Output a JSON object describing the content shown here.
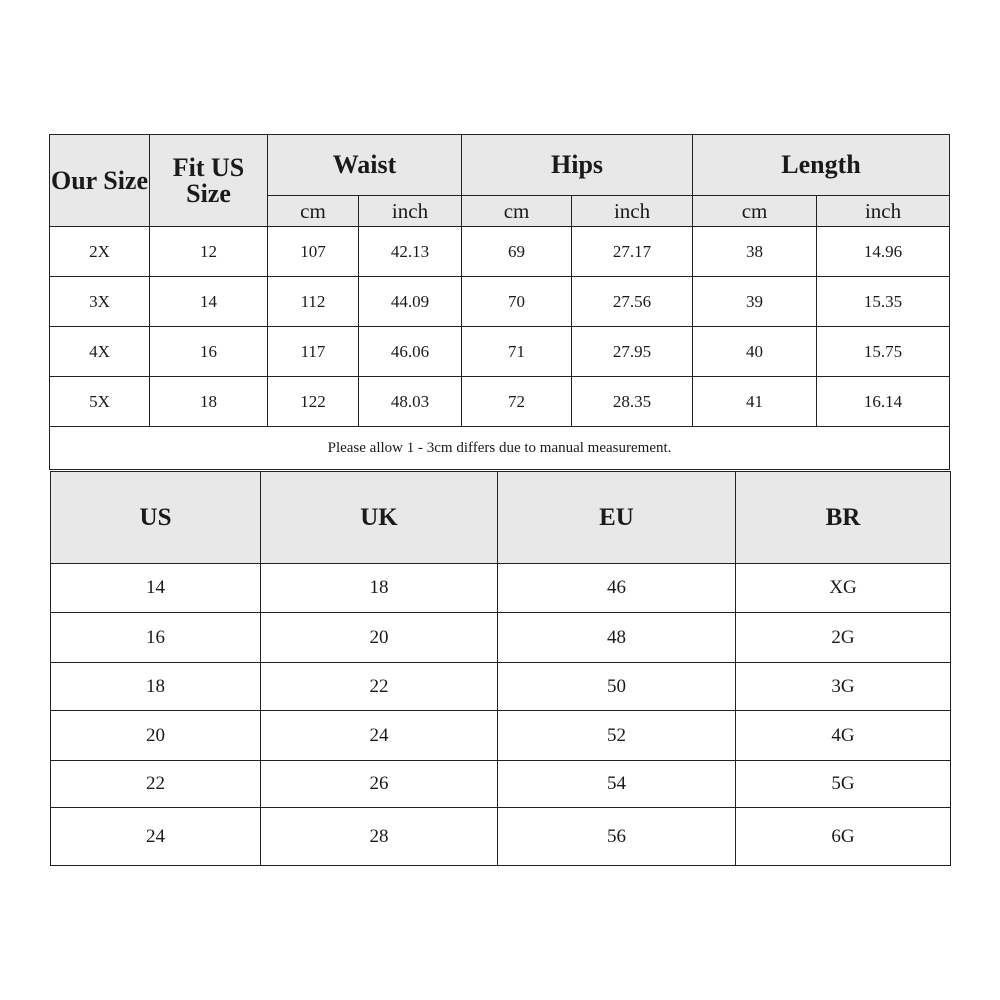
{
  "measurement_table": {
    "headers": {
      "our_size": "Our Size",
      "fit_us_size": "Fit US Size",
      "waist": "Waist",
      "hips": "Hips",
      "length": "Length"
    },
    "units": [
      "cm",
      "inch",
      "cm",
      "inch",
      "cm",
      "inch"
    ],
    "rows": [
      [
        "2X",
        "12",
        "107",
        "42.13",
        "69",
        "27.17",
        "38",
        "14.96"
      ],
      [
        "3X",
        "14",
        "112",
        "44.09",
        "70",
        "27.56",
        "39",
        "15.35"
      ],
      [
        "4X",
        "16",
        "117",
        "46.06",
        "71",
        "27.95",
        "40",
        "15.75"
      ],
      [
        "5X",
        "18",
        "122",
        "48.03",
        "72",
        "28.35",
        "41",
        "16.14"
      ]
    ],
    "note": "Please allow 1 - 3cm differs due to manual measurement."
  },
  "conversion_table": {
    "headers": [
      "US",
      "UK",
      "EU",
      "BR"
    ],
    "rows": [
      [
        "14",
        "18",
        "46",
        "XG"
      ],
      [
        "16",
        "20",
        "48",
        "2G"
      ],
      [
        "18",
        "22",
        "50",
        "3G"
      ],
      [
        "20",
        "24",
        "52",
        "4G"
      ],
      [
        "22",
        "26",
        "54",
        "5G"
      ],
      [
        "24",
        "28",
        "56",
        "6G"
      ]
    ]
  },
  "colors": {
    "header_bg": "#e8e8e8",
    "border": "#222222"
  }
}
